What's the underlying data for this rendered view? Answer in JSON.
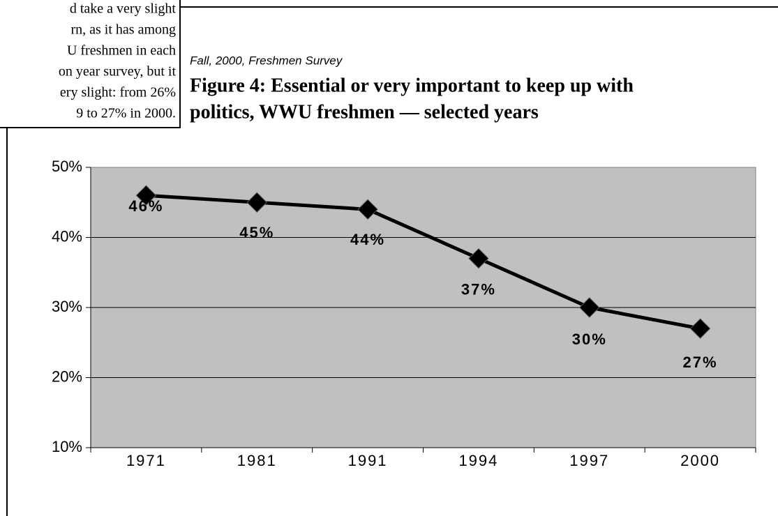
{
  "text_box": {
    "lines": [
      "d take a very slight",
      "rn, as it has among",
      "U freshmen in each",
      "on year survey, but it",
      "ery slight: from 26%",
      "9 to 27% in 2000."
    ]
  },
  "chart_data": {
    "type": "line",
    "subtitle": "Fall, 2000, Freshmen Survey",
    "title": [
      "Figure 4: Essential or very important to keep up with",
      "politics, WWU freshmen — selected years"
    ],
    "categories": [
      "1971",
      "1981",
      "1991",
      "1994",
      "1997",
      "2000"
    ],
    "series": [
      {
        "color": "#000000",
        "values": [
          46,
          45,
          44,
          37,
          30,
          27
        ],
        "value_labels": [
          "46%",
          "45%",
          "44%",
          "37%",
          "30%",
          "27%"
        ]
      }
    ],
    "ylim": [
      10,
      50
    ],
    "yticks": [
      {
        "value": 10,
        "label": "10%"
      },
      {
        "value": 20,
        "label": "20%"
      },
      {
        "value": 30,
        "label": "30%"
      },
      {
        "value": 40,
        "label": "40%"
      },
      {
        "value": 50,
        "label": "50%"
      }
    ],
    "grid": true,
    "plot_background": "#c0c0c0"
  }
}
